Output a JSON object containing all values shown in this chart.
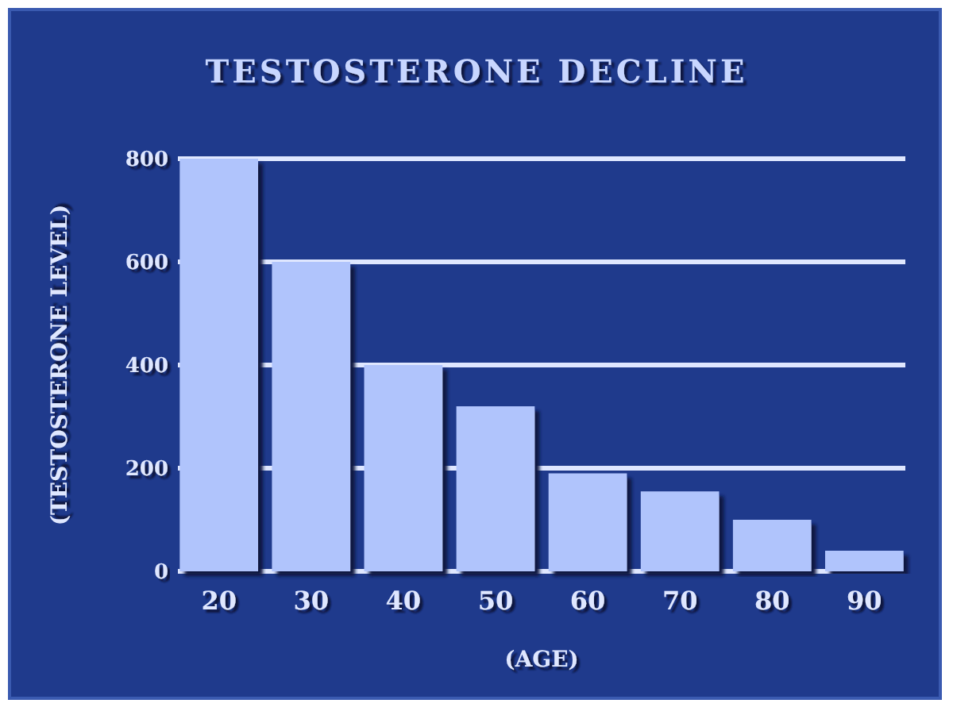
{
  "chart_data": {
    "type": "bar",
    "title": "TESTOSTERONE DECLINE",
    "xlabel": "(AGE)",
    "ylabel": "(TESTOSTERONE LEVEL)",
    "categories": [
      "20",
      "30",
      "40",
      "50",
      "60",
      "70",
      "80",
      "90"
    ],
    "values": [
      800,
      600,
      400,
      320,
      190,
      155,
      100,
      40
    ],
    "color": "#b0c4fc",
    "ylim": [
      0,
      800
    ],
    "yticks": [
      0,
      200,
      400,
      600,
      800
    ],
    "grid": "y"
  }
}
